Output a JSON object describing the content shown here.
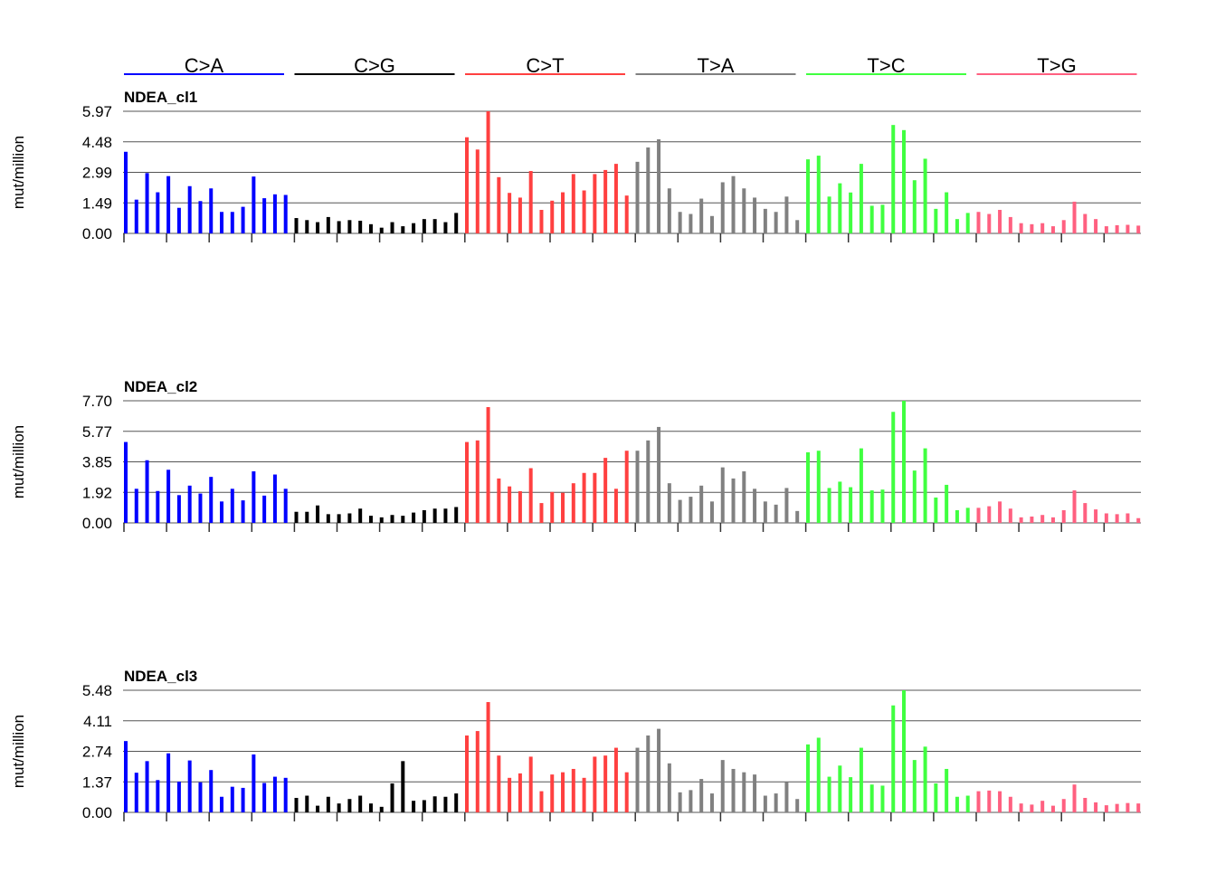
{
  "chart_data": {
    "type": "bar",
    "ylabel": "mut/million",
    "categories": [
      "C>A",
      "C>G",
      "C>T",
      "T>A",
      "T>C",
      "T>G"
    ],
    "colors": {
      "C>A": "#0000ff",
      "C>G": "#000000",
      "C>T": "#ff4040",
      "T>A": "#808080",
      "T>C": "#40ff40",
      "T>G": "#ff6080"
    },
    "panels": [
      {
        "title": "NDEA_cl1",
        "ylim": [
          0,
          5.97
        ],
        "ticks": [
          "0.00",
          "1.49",
          "2.99",
          "4.48",
          "5.97"
        ],
        "groups": [
          [
            3.99,
            1.65,
            2.95,
            2.01,
            2.8,
            1.25,
            2.31,
            1.58,
            2.2,
            1.05,
            1.05,
            1.3,
            2.78,
            1.72,
            1.91,
            1.88
          ],
          [
            0.75,
            0.65,
            0.55,
            0.8,
            0.6,
            0.65,
            0.62,
            0.45,
            0.28,
            0.55,
            0.35,
            0.5,
            0.7,
            0.7,
            0.55,
            1.0
          ],
          [
            4.7,
            4.1,
            5.97,
            2.75,
            1.98,
            1.75,
            3.05,
            1.15,
            1.6,
            2.01,
            2.9,
            2.1,
            2.9,
            3.1,
            3.4,
            1.85
          ],
          [
            3.5,
            4.2,
            4.6,
            2.2,
            1.05,
            0.95,
            1.7,
            0.85,
            2.5,
            2.8,
            2.2,
            1.75,
            1.2,
            1.05,
            1.8,
            0.65
          ],
          [
            3.62,
            3.8,
            1.8,
            2.45,
            2.0,
            3.4,
            1.35,
            1.4,
            5.3,
            5.05,
            2.6,
            3.65,
            1.2,
            2.01,
            0.7,
            1.0
          ],
          [
            1.05,
            0.95,
            1.15,
            0.8,
            0.5,
            0.45,
            0.5,
            0.35,
            0.65,
            1.55,
            0.95,
            0.7,
            0.35,
            0.4,
            0.42,
            0.38
          ]
        ]
      },
      {
        "title": "NDEA_cl2",
        "ylim": [
          0,
          7.7
        ],
        "ticks": [
          "0.00",
          "1.92",
          "3.85",
          "5.77",
          "7.70"
        ],
        "groups": [
          [
            5.1,
            2.15,
            3.95,
            2.01,
            3.35,
            1.75,
            2.35,
            1.85,
            2.9,
            1.35,
            2.15,
            1.42,
            3.25,
            1.72,
            3.05,
            2.15
          ],
          [
            0.7,
            0.7,
            1.1,
            0.55,
            0.55,
            0.6,
            0.9,
            0.45,
            0.35,
            0.5,
            0.45,
            0.65,
            0.8,
            0.9,
            0.9,
            1.0
          ],
          [
            5.1,
            5.2,
            7.3,
            2.8,
            2.3,
            2.0,
            3.45,
            1.25,
            1.95,
            1.9,
            2.5,
            3.15,
            3.15,
            4.1,
            2.15,
            4.55
          ],
          [
            4.55,
            5.2,
            6.05,
            2.5,
            1.45,
            1.65,
            2.35,
            1.35,
            3.5,
            2.8,
            3.25,
            2.15,
            1.35,
            1.15,
            2.2,
            0.75
          ],
          [
            4.45,
            4.55,
            2.2,
            2.6,
            2.25,
            4.7,
            2.05,
            2.1,
            7.0,
            7.7,
            3.3,
            4.7,
            1.6,
            2.4,
            0.8,
            0.95
          ],
          [
            0.95,
            1.05,
            1.35,
            0.9,
            0.35,
            0.4,
            0.5,
            0.35,
            0.8,
            2.05,
            1.25,
            0.85,
            0.6,
            0.55,
            0.6,
            0.3
          ]
        ]
      },
      {
        "title": "NDEA_cl3",
        "ylim": [
          0,
          5.48
        ],
        "ticks": [
          "0.00",
          "1.37",
          "2.74",
          "4.11",
          "5.48"
        ],
        "groups": [
          [
            3.2,
            1.78,
            2.3,
            1.45,
            2.65,
            1.38,
            2.33,
            1.35,
            1.9,
            0.7,
            1.15,
            1.1,
            2.6,
            1.32,
            1.6,
            1.55
          ],
          [
            0.65,
            0.75,
            0.3,
            0.7,
            0.4,
            0.6,
            0.75,
            0.4,
            0.25,
            1.3,
            2.3,
            0.52,
            0.55,
            0.72,
            0.7,
            0.85
          ],
          [
            3.45,
            3.65,
            4.95,
            2.55,
            1.55,
            1.75,
            2.5,
            0.95,
            1.7,
            1.8,
            1.95,
            1.55,
            2.5,
            2.55,
            2.9,
            1.8
          ],
          [
            2.9,
            3.45,
            3.75,
            2.2,
            0.9,
            1.0,
            1.5,
            0.85,
            2.35,
            1.95,
            1.8,
            1.7,
            0.75,
            0.85,
            1.35,
            0.6
          ],
          [
            3.05,
            3.35,
            1.6,
            2.1,
            1.58,
            2.9,
            1.25,
            1.2,
            4.8,
            5.48,
            2.35,
            2.95,
            1.3,
            1.95,
            0.7,
            0.75
          ],
          [
            0.95,
            0.98,
            0.95,
            0.7,
            0.4,
            0.35,
            0.52,
            0.3,
            0.6,
            1.25,
            0.65,
            0.45,
            0.32,
            0.38,
            0.42,
            0.4
          ]
        ]
      }
    ]
  }
}
